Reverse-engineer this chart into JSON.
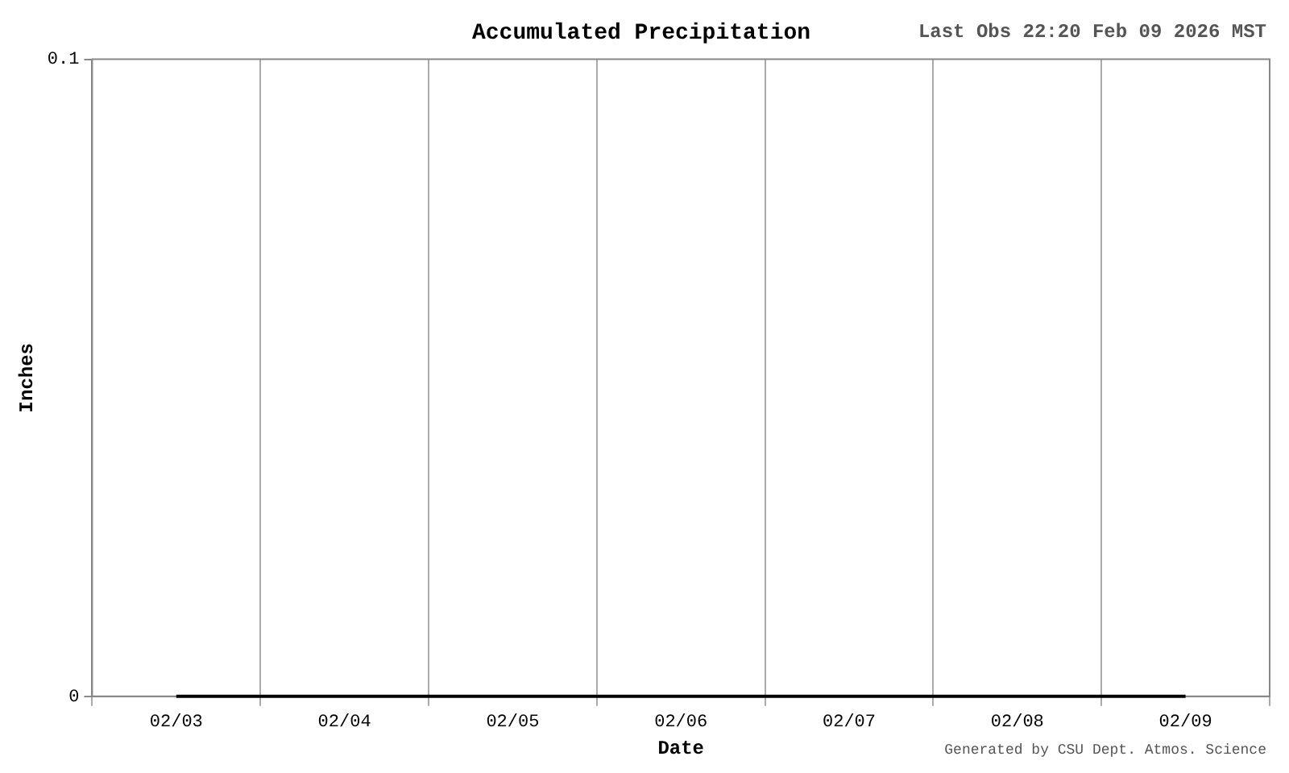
{
  "chart_data": {
    "type": "line",
    "title": "Accumulated Precipitation",
    "xlabel": "Date",
    "ylabel": "Inches",
    "annotations": [
      "Last Obs 22:20 Feb 09 2026 MST",
      "Generated by CSU Dept. Atmos. Science"
    ],
    "categories": [
      "02/03",
      "02/04",
      "02/05",
      "02/06",
      "02/07",
      "02/08",
      "02/09"
    ],
    "series": [
      {
        "color": "#000000",
        "values": [
          0,
          0,
          0,
          0,
          0,
          0,
          0
        ]
      }
    ],
    "ylim": [
      0,
      0.1
    ],
    "yticks": [
      0,
      0.1
    ],
    "grid": "x",
    "legend": false,
    "marker": "none",
    "line_style": "solid"
  }
}
